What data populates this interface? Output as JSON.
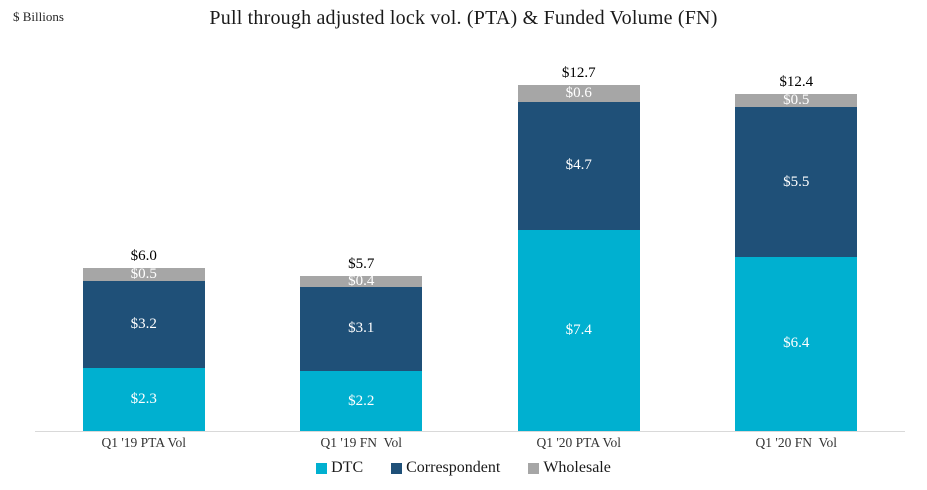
{
  "chart_data": {
    "type": "bar",
    "stacked": true,
    "title": "Pull through adjusted lock vol. (PTA) & Funded Volume (FN)",
    "units_label": "$ Billions",
    "categories": [
      "Q1 '19 PTA Vol",
      "Q1 '19 FN  Vol",
      "Q1 '20 PTA Vol",
      "Q1 '20 FN  Vol"
    ],
    "series": [
      {
        "name": "DTC",
        "color": "#00B0D0",
        "values": [
          2.3,
          2.2,
          7.4,
          6.4
        ],
        "labels": [
          "$2.3",
          "$2.2",
          "$7.4",
          "$6.4"
        ]
      },
      {
        "name": "Correspondent",
        "color": "#1F5078",
        "values": [
          3.2,
          3.1,
          4.7,
          5.5
        ],
        "labels": [
          "$3.2",
          "$3.1",
          "$4.7",
          "$5.5"
        ]
      },
      {
        "name": "Wholesale",
        "color": "#A6A6A6",
        "values": [
          0.5,
          0.4,
          0.6,
          0.5
        ],
        "labels": [
          "$0.5",
          "$0.4",
          "$0.6",
          "$0.5"
        ]
      }
    ],
    "totals": [
      "$6.0",
      "$5.7",
      "$12.7",
      "$12.4"
    ],
    "ylim": [
      0,
      14
    ],
    "grid": false,
    "legend_position": "bottom",
    "axis_line_color": "#D9D9D9"
  }
}
